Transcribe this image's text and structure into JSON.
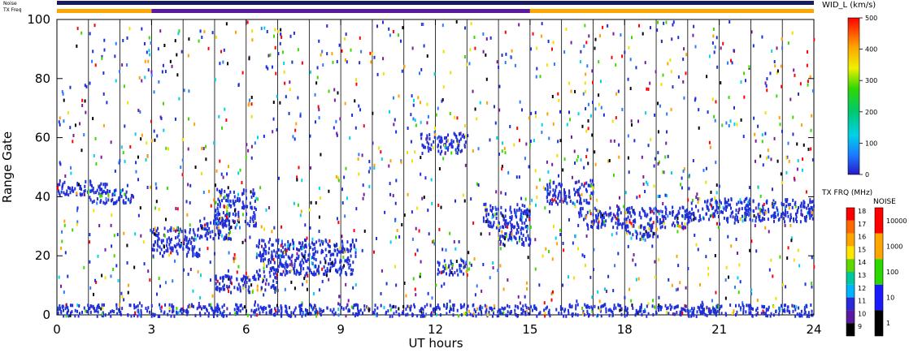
{
  "top_bars": {
    "noise_label": "Noise",
    "txfreq_label": "TX Freq"
  },
  "chart_data": {
    "type": "scatter",
    "subtype": "range-time-intensity",
    "xlabel": "UT hours",
    "ylabel": "Range Gate",
    "xlim": [
      0,
      24
    ],
    "ylim": [
      0,
      100
    ],
    "x_ticks": [
      0,
      3,
      6,
      9,
      12,
      15,
      18,
      21,
      24
    ],
    "y_ticks": [
      0,
      20,
      40,
      60,
      80,
      100
    ],
    "scan_boundaries_ut": [
      1.0,
      2.0,
      3.0,
      4.0,
      5.0,
      6.0,
      7.0,
      8.0,
      9.0,
      10.0,
      11.0,
      12.0,
      13.0,
      14.0,
      15.0,
      16.0,
      17.0,
      18.0,
      19.0,
      20.0,
      21.0,
      22.0,
      23.0
    ],
    "txfreq_segments": [
      {
        "start": 0,
        "end": 3,
        "color": "#ffa500"
      },
      {
        "start": 3,
        "end": 15,
        "color": "#5a1aa0"
      },
      {
        "start": 15,
        "end": 24,
        "color": "#ffa500"
      }
    ],
    "echo_bands": [
      {
        "x0": 0.0,
        "x1": 1.6,
        "y0": 41,
        "y1": 46,
        "color": "#1e2ed8"
      },
      {
        "x0": 1.0,
        "x1": 2.4,
        "y0": 38,
        "y1": 43,
        "color": "#1e2ed8"
      },
      {
        "x0": 3.0,
        "x1": 4.5,
        "y0": 20,
        "y1": 30,
        "color": "#1e2ed8"
      },
      {
        "x0": 4.5,
        "x1": 5.5,
        "y0": 26,
        "y1": 34,
        "color": "#1e2ed8"
      },
      {
        "x0": 5.0,
        "x1": 6.3,
        "y0": 30,
        "y1": 43,
        "color": "#1e2ed8"
      },
      {
        "x0": 5.0,
        "x1": 7.0,
        "y0": 8,
        "y1": 14,
        "color": "#1e2ed8"
      },
      {
        "x0": 6.3,
        "x1": 9.5,
        "y0": 14,
        "y1": 26,
        "color": "#1e2ed8"
      },
      {
        "x0": 11.5,
        "x1": 13.0,
        "y0": 55,
        "y1": 62,
        "color": "#1e2ed8"
      },
      {
        "x0": 12.0,
        "x1": 13.0,
        "y0": 14,
        "y1": 19,
        "color": "#1e2ed8"
      },
      {
        "x0": 13.5,
        "x1": 15.0,
        "y0": 30,
        "y1": 38,
        "color": "#1e2ed8"
      },
      {
        "x0": 14.0,
        "x1": 15.0,
        "y0": 24,
        "y1": 31,
        "color": "#1e2ed8"
      },
      {
        "x0": 15.5,
        "x1": 17.0,
        "y0": 38,
        "y1": 46,
        "color": "#1e2ed8"
      },
      {
        "x0": 16.5,
        "x1": 20.0,
        "y0": 30,
        "y1": 37,
        "color": "#1e2ed8"
      },
      {
        "x0": 18.0,
        "x1": 19.0,
        "y0": 26,
        "y1": 31,
        "color": "#1e2ed8"
      },
      {
        "x0": 20.0,
        "x1": 24.0,
        "y0": 32,
        "y1": 40,
        "color": "#1e2ed8"
      },
      {
        "x0": 0.0,
        "x1": 24.0,
        "y0": 0,
        "y1": 4,
        "color": "#1e2ed8"
      }
    ],
    "width_colorbar": {
      "label": "WID_L (km/s)",
      "ticks": [
        "500",
        "400",
        "300",
        "200",
        "100",
        "0"
      ]
    },
    "txfreq_colorbar": {
      "label": "TX FRQ (MHz)",
      "ticks": [
        "18",
        "17",
        "16",
        "15",
        "14",
        "13",
        "12",
        "11",
        "10",
        "9"
      ],
      "colors": [
        "#ff0000",
        "#ff6a00",
        "#ffa500",
        "#ffe500",
        "#5fd800",
        "#00c8a0",
        "#00b4ff",
        "#2a2ad8",
        "#5a1aa0",
        "#000000"
      ]
    },
    "noise_colorbar": {
      "label": "NOISE",
      "ticks": [
        "10000",
        "1000",
        "100",
        "10",
        "1"
      ],
      "colors": [
        "#ff0000",
        "#ffa500",
        "#2ad800",
        "#1a1aff",
        "#000000"
      ]
    }
  }
}
